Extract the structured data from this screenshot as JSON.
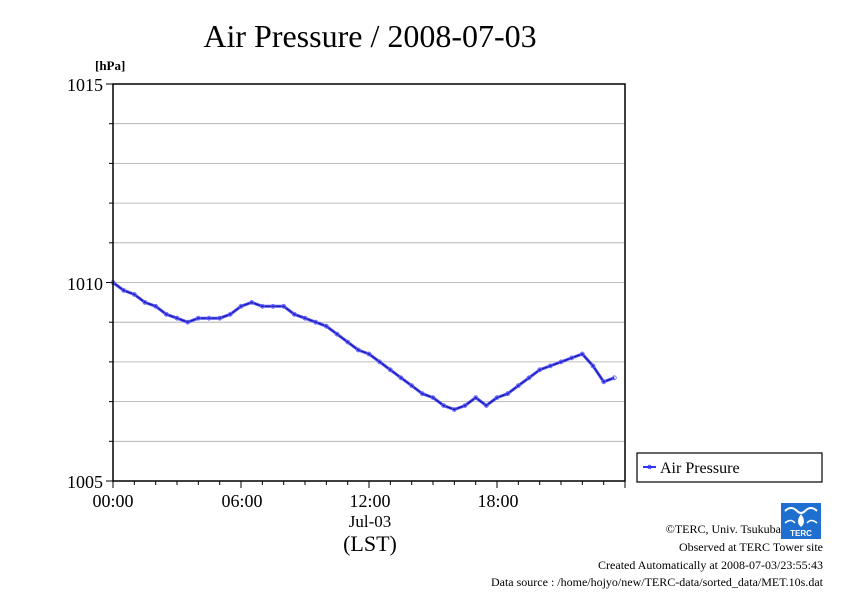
{
  "chart_data": {
    "type": "line",
    "title": "Air Pressure / 2008-07-03",
    "ylabel": "[hPa]",
    "xlabel": "(LST)",
    "date_label": "Jul-03",
    "ylim": [
      1005,
      1015
    ],
    "y_ticks": [
      "1005",
      "1010",
      "1015"
    ],
    "x_ticks": [
      "00:00",
      "06:00",
      "12:00",
      "18:00"
    ],
    "xlim_hours": [
      0,
      23.5
    ],
    "grid": true,
    "legend_position": "right-bottom",
    "series": [
      {
        "name": "Air Pressure",
        "color": "#3333ff",
        "x_hours": [
          0.0,
          0.5,
          1.0,
          1.5,
          2.0,
          2.5,
          3.0,
          3.5,
          4.0,
          4.5,
          5.0,
          5.5,
          6.0,
          6.5,
          7.0,
          7.5,
          8.0,
          8.5,
          9.0,
          9.5,
          10.0,
          10.5,
          11.0,
          11.5,
          12.0,
          12.5,
          13.0,
          13.5,
          14.0,
          14.5,
          15.0,
          15.5,
          16.0,
          16.5,
          17.0,
          17.5,
          18.0,
          18.5,
          19.0,
          19.5,
          20.0,
          20.5,
          21.0,
          21.5,
          22.0,
          22.5,
          23.0,
          23.5
        ],
        "values": [
          1010.0,
          1009.8,
          1009.7,
          1009.5,
          1009.4,
          1009.2,
          1009.1,
          1009.0,
          1009.1,
          1009.1,
          1009.1,
          1009.2,
          1009.4,
          1009.5,
          1009.4,
          1009.4,
          1009.4,
          1009.2,
          1009.1,
          1009.0,
          1008.9,
          1008.7,
          1008.5,
          1008.3,
          1008.2,
          1008.0,
          1007.8,
          1007.6,
          1007.4,
          1007.2,
          1007.1,
          1006.9,
          1006.8,
          1006.9,
          1007.1,
          1006.9,
          1007.1,
          1007.2,
          1007.4,
          1007.6,
          1007.8,
          1007.9,
          1008.0,
          1008.1,
          1008.2,
          1007.9,
          1007.5,
          1007.6
        ]
      }
    ]
  },
  "credits": {
    "copyright": "©TERC, Univ. Tsukuba",
    "observed": "Observed at TERC Tower site",
    "created": "Created Automatically at 2008-07-03/23:55:43",
    "source": "Data source : /home/hojyo/new/TERC-data/sorted_data/MET.10s.dat"
  },
  "logo": {
    "text": "TERC",
    "color": "#1e6fd0"
  }
}
